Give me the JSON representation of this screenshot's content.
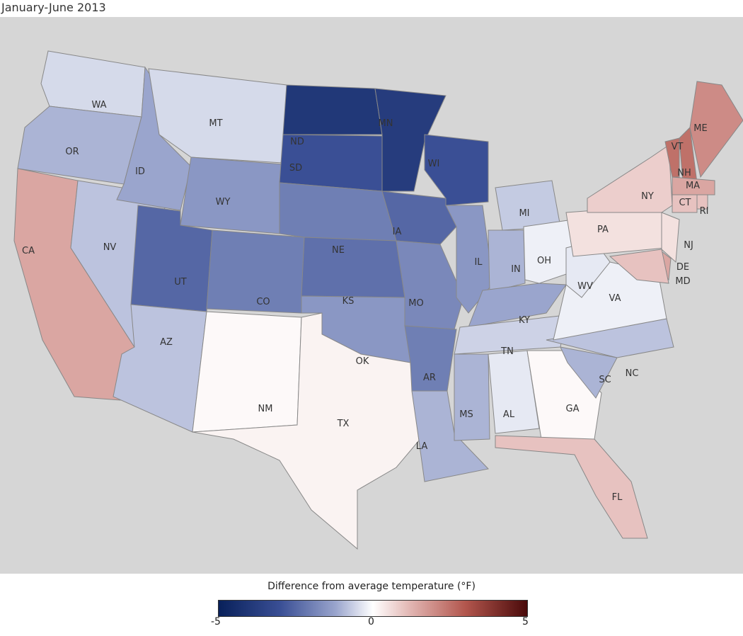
{
  "title": "January-June 2013",
  "legend": {
    "title": "Difference from average temperature (°F)",
    "min": "-5",
    "mid": "0",
    "max": "5",
    "range": [
      -5,
      5
    ],
    "colors": {
      "cold": "#08205a",
      "neutral": "#ffffff",
      "warm": "#4a0a0a"
    }
  },
  "states": [
    {
      "abbr": "WA",
      "value": -0.5
    },
    {
      "abbr": "OR",
      "value": -1.0
    },
    {
      "abbr": "CA",
      "value": 1.5
    },
    {
      "abbr": "NV",
      "value": -0.8
    },
    {
      "abbr": "ID",
      "value": -1.2
    },
    {
      "abbr": "MT",
      "value": -0.5
    },
    {
      "abbr": "WY",
      "value": -1.5
    },
    {
      "abbr": "UT",
      "value": -2.5
    },
    {
      "abbr": "CO",
      "value": -2.0
    },
    {
      "abbr": "AZ",
      "value": -0.8
    },
    {
      "abbr": "NM",
      "value": 0.1
    },
    {
      "abbr": "ND",
      "value": -4.0
    },
    {
      "abbr": "SD",
      "value": -3.0
    },
    {
      "abbr": "NE",
      "value": -2.0
    },
    {
      "abbr": "KS",
      "value": -2.3
    },
    {
      "abbr": "OK",
      "value": -1.5
    },
    {
      "abbr": "TX",
      "value": 0.2
    },
    {
      "abbr": "MN",
      "value": -3.8
    },
    {
      "abbr": "IA",
      "value": -2.5
    },
    {
      "abbr": "MO",
      "value": -1.8
    },
    {
      "abbr": "AR",
      "value": -2.0
    },
    {
      "abbr": "LA",
      "value": -1.0
    },
    {
      "abbr": "WI",
      "value": -3.0
    },
    {
      "abbr": "IL",
      "value": -1.5
    },
    {
      "abbr": "MI",
      "value": -0.7
    },
    {
      "abbr": "IN",
      "value": -1.0
    },
    {
      "abbr": "OH",
      "value": -0.2
    },
    {
      "abbr": "KY",
      "value": -1.2
    },
    {
      "abbr": "TN",
      "value": -0.6
    },
    {
      "abbr": "MS",
      "value": -1.0
    },
    {
      "abbr": "AL",
      "value": -0.3
    },
    {
      "abbr": "GA",
      "value": 0.1
    },
    {
      "abbr": "FL",
      "value": 1.0
    },
    {
      "abbr": "SC",
      "value": -1.0
    },
    {
      "abbr": "NC",
      "value": -0.8
    },
    {
      "abbr": "VA",
      "value": -0.2
    },
    {
      "abbr": "WV",
      "value": -0.3
    },
    {
      "abbr": "PA",
      "value": 0.5
    },
    {
      "abbr": "NY",
      "value": 0.8
    },
    {
      "abbr": "VT",
      "value": 2.5
    },
    {
      "abbr": "NH",
      "value": 2.5
    },
    {
      "abbr": "ME",
      "value": 2.0
    },
    {
      "abbr": "MA",
      "value": 1.5
    },
    {
      "abbr": "CT",
      "value": 1.0
    },
    {
      "abbr": "RI",
      "value": 1.0
    },
    {
      "abbr": "NJ",
      "value": 0.5
    },
    {
      "abbr": "DE",
      "value": 1.5
    },
    {
      "abbr": "MD",
      "value": 1.0
    }
  ]
}
